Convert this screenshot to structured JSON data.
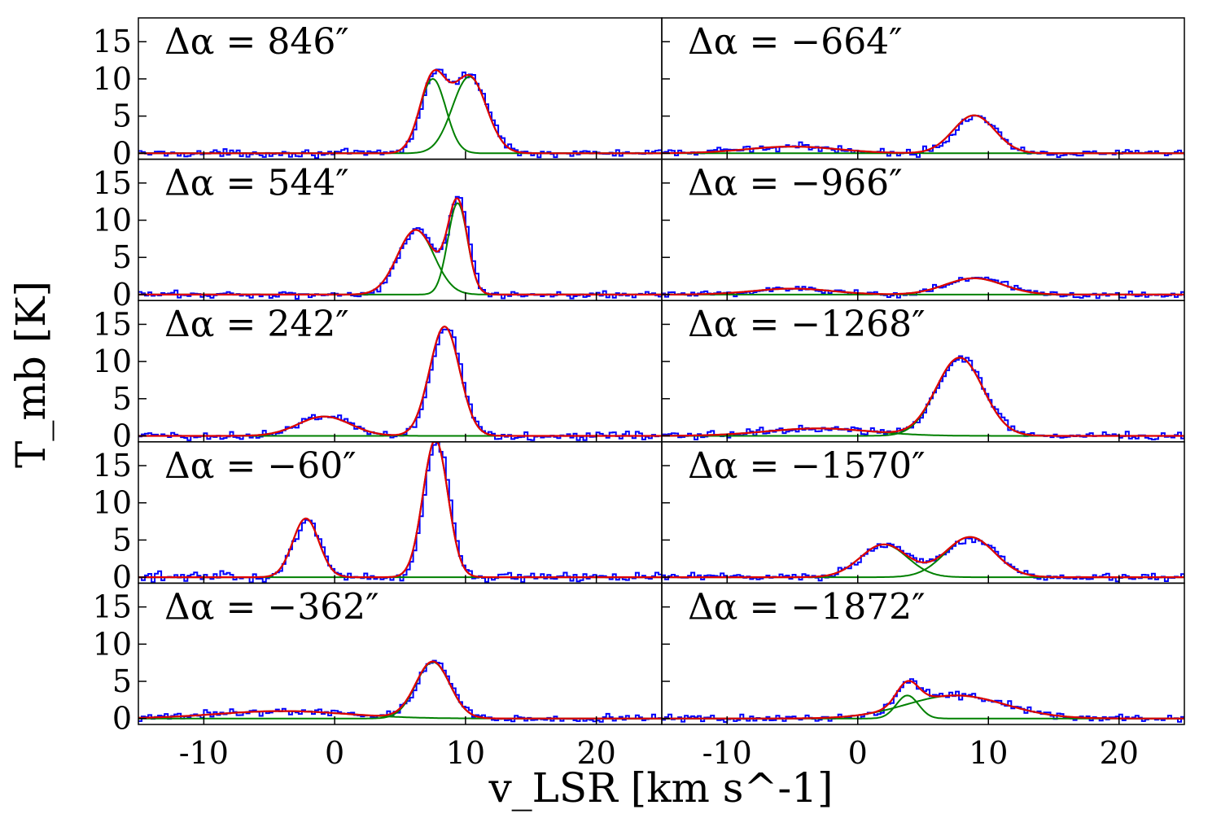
{
  "chart_data": {
    "type": "line",
    "layout": "5 rows x 2 columns grid of spectra panels",
    "xlabel": "v_LSR [km s^-1]",
    "ylabel": "T_mb [K]",
    "xlim": [
      -15,
      25
    ],
    "ylim": [
      -0.8,
      18.2
    ],
    "x_ticks": [
      -10,
      0,
      10,
      20
    ],
    "x_tick_labels": [
      "-10",
      "0",
      "10",
      "20"
    ],
    "y_ticks": [
      0,
      5,
      10,
      15
    ],
    "y_tick_labels": [
      "0",
      "5",
      "10",
      "15"
    ],
    "colors": {
      "observed": "#0000ff",
      "fit_total": "#e00000",
      "components": "#008000"
    },
    "series_legend": [
      "observed spectrum (blue step)",
      "total Gaussian fit (red)",
      "individual Gaussian components (green)"
    ],
    "panels": [
      {
        "label": "Δα = 846″",
        "delta_alpha": 846,
        "noise": 0.3,
        "components": [
          {
            "amp": 10.0,
            "center": 7.5,
            "sigma": 1.0
          },
          {
            "amp": 10.3,
            "center": 10.3,
            "sigma": 1.3
          }
        ]
      },
      {
        "label": "Δα = −664″",
        "delta_alpha": -664,
        "noise": 0.3,
        "components": [
          {
            "amp": 0.9,
            "center": -5.0,
            "sigma": 3.5
          },
          {
            "amp": 5.1,
            "center": 8.9,
            "sigma": 1.6
          }
        ]
      },
      {
        "label": "Δα = 544″",
        "delta_alpha": 544,
        "noise": 0.3,
        "components": [
          {
            "amp": 8.7,
            "center": 6.2,
            "sigma": 1.4
          },
          {
            "amp": 12.3,
            "center": 9.4,
            "sigma": 0.75
          }
        ]
      },
      {
        "label": "Δα = −966″",
        "delta_alpha": -966,
        "noise": 0.3,
        "components": [
          {
            "amp": 0.8,
            "center": -5.0,
            "sigma": 3.0
          },
          {
            "amp": 2.2,
            "center": 8.9,
            "sigma": 2.2
          }
        ]
      },
      {
        "label": "Δα = 242″",
        "delta_alpha": 242,
        "noise": 0.35,
        "components": [
          {
            "amp": 2.6,
            "center": -0.8,
            "sigma": 2.0
          },
          {
            "amp": 14.7,
            "center": 8.4,
            "sigma": 1.15
          }
        ]
      },
      {
        "label": "Δα = −1268″",
        "delta_alpha": -1268,
        "noise": 0.3,
        "components": [
          {
            "amp": 1.0,
            "center": -3.0,
            "sigma": 4.0
          },
          {
            "amp": 10.5,
            "center": 7.8,
            "sigma": 1.8
          }
        ]
      },
      {
        "label": "Δα = −60″",
        "delta_alpha": -60,
        "noise": 0.4,
        "components": [
          {
            "amp": 7.9,
            "center": -2.2,
            "sigma": 1.0
          },
          {
            "amp": 18.5,
            "center": 7.7,
            "sigma": 0.95
          }
        ]
      },
      {
        "label": "Δα = −1570″",
        "delta_alpha": -1570,
        "noise": 0.3,
        "components": [
          {
            "amp": 4.4,
            "center": 2.0,
            "sigma": 1.8
          },
          {
            "amp": 5.4,
            "center": 8.6,
            "sigma": 1.9
          }
        ]
      },
      {
        "label": "Δα = −362″",
        "delta_alpha": -362,
        "noise": 0.3,
        "components": [
          {
            "amp": 1.0,
            "center": -4.0,
            "sigma": 5.0
          },
          {
            "amp": 7.6,
            "center": 7.5,
            "sigma": 1.3
          }
        ]
      },
      {
        "label": "Δα = −1872″",
        "delta_alpha": -1872,
        "noise": 0.3,
        "components": [
          {
            "amp": 3.1,
            "center": 3.8,
            "sigma": 0.85
          },
          {
            "amp": 3.1,
            "center": 7.5,
            "sigma": 3.8
          }
        ]
      }
    ]
  }
}
